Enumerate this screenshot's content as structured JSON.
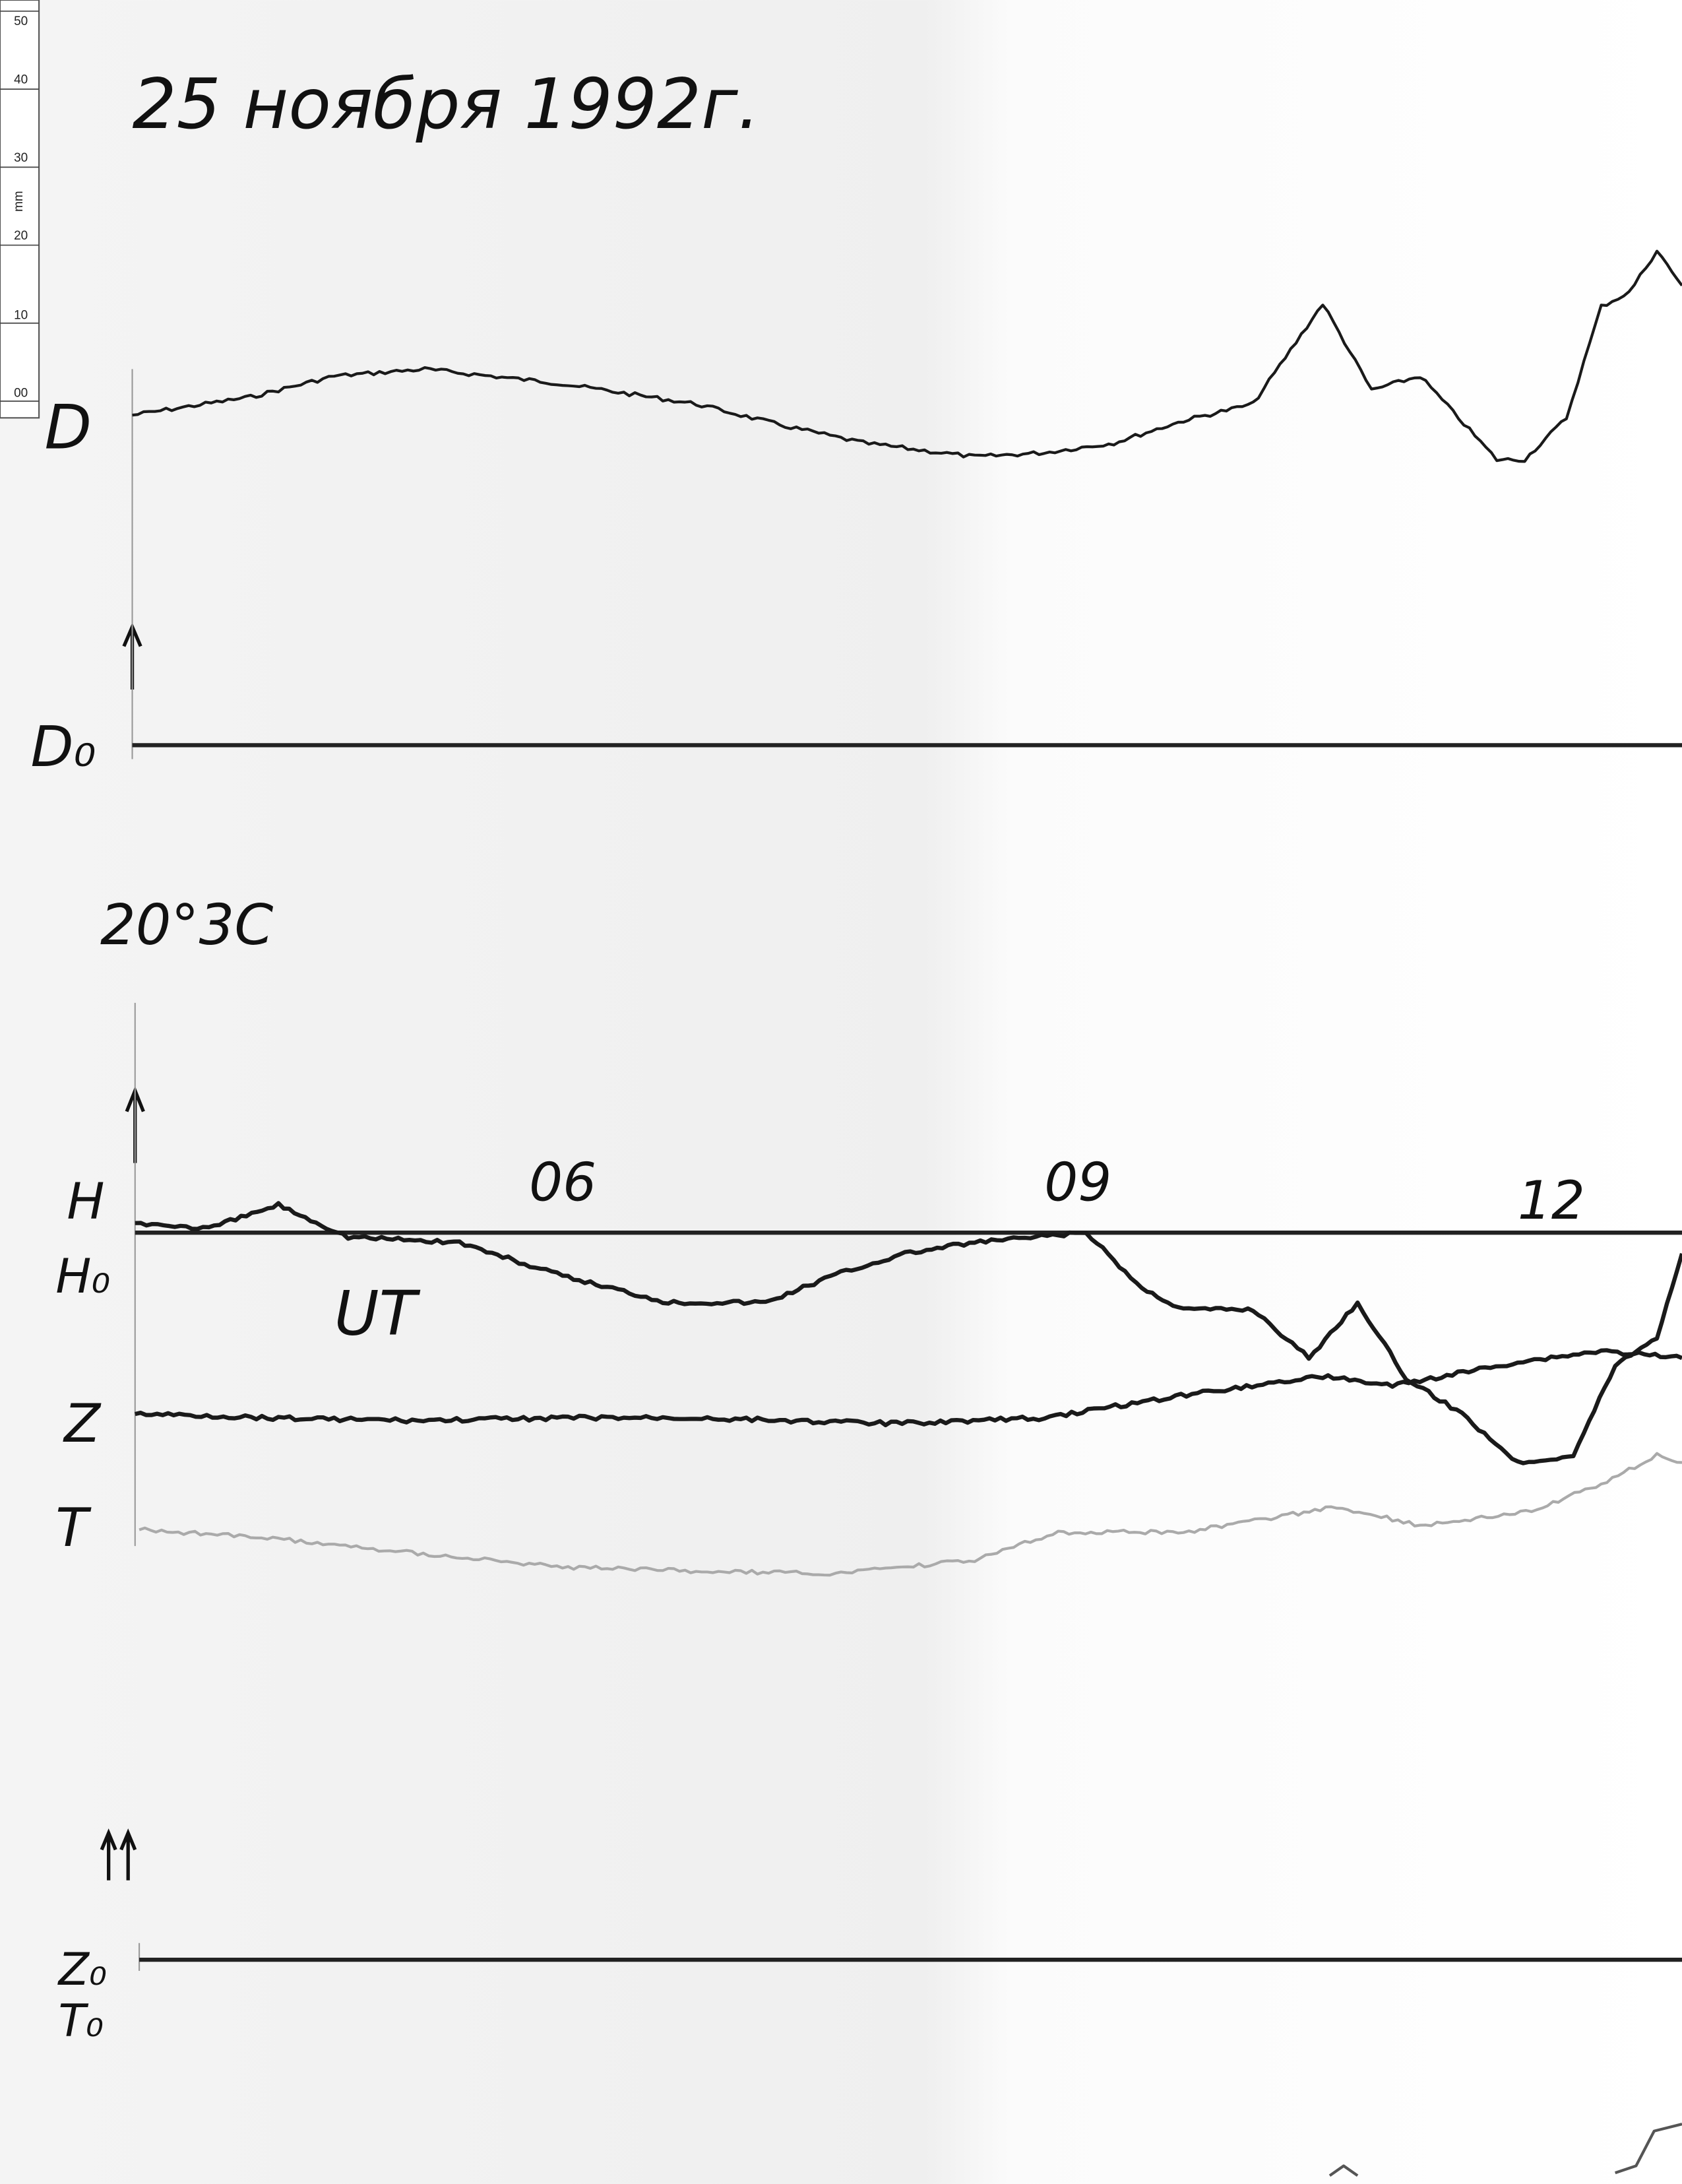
{
  "header": {
    "title": "25 ноября 1992г."
  },
  "ruler": {
    "unit": "mm",
    "marks": [
      "50",
      "40",
      "30",
      "20",
      "10",
      "00"
    ]
  },
  "labels": {
    "d": "D",
    "d0": "D₀",
    "temperature": "20°3C",
    "h": "H",
    "h0": "H₀",
    "z": "Z",
    "t": "T",
    "z0": "Z₀",
    "t0": "T₀",
    "ut": "UT",
    "hours": [
      "06",
      "09",
      "12"
    ]
  }
}
